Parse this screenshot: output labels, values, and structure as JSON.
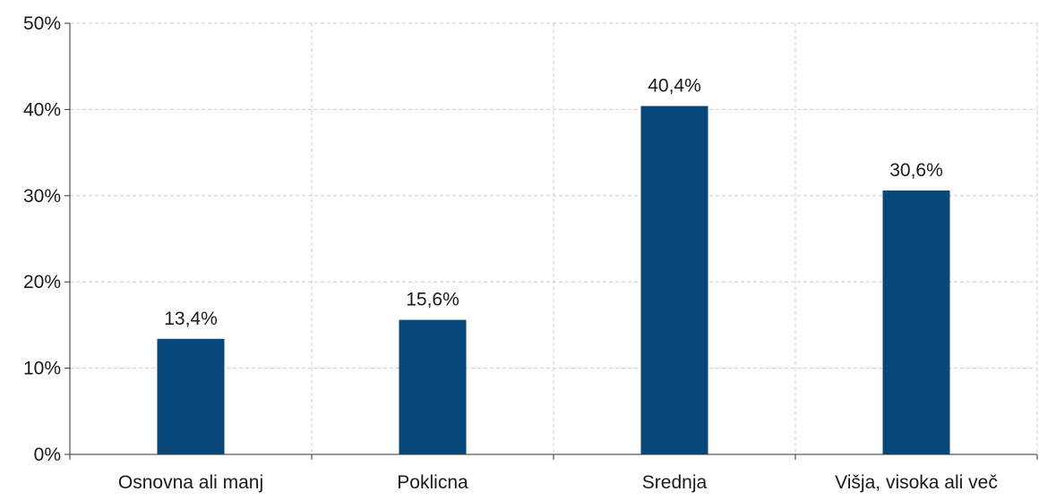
{
  "chart_data": {
    "type": "bar",
    "categories": [
      "Osnovna ali manj",
      "Poklicna",
      "Srednja",
      "Višja, visoka ali več"
    ],
    "values": [
      13.4,
      15.6,
      40.4,
      30.6
    ],
    "value_labels": [
      "13,4%",
      "15,6%",
      "40,4%",
      "30,6%"
    ],
    "ylim": [
      0,
      50
    ],
    "yticks": [
      0,
      10,
      20,
      30,
      40,
      50
    ],
    "ytick_labels": [
      "0%",
      "10%",
      "20%",
      "30%",
      "40%",
      "50%"
    ],
    "title": "",
    "xlabel": "",
    "ylabel": "",
    "grid": true,
    "bar_color": "#074779",
    "grid_color": "#cccccc"
  }
}
